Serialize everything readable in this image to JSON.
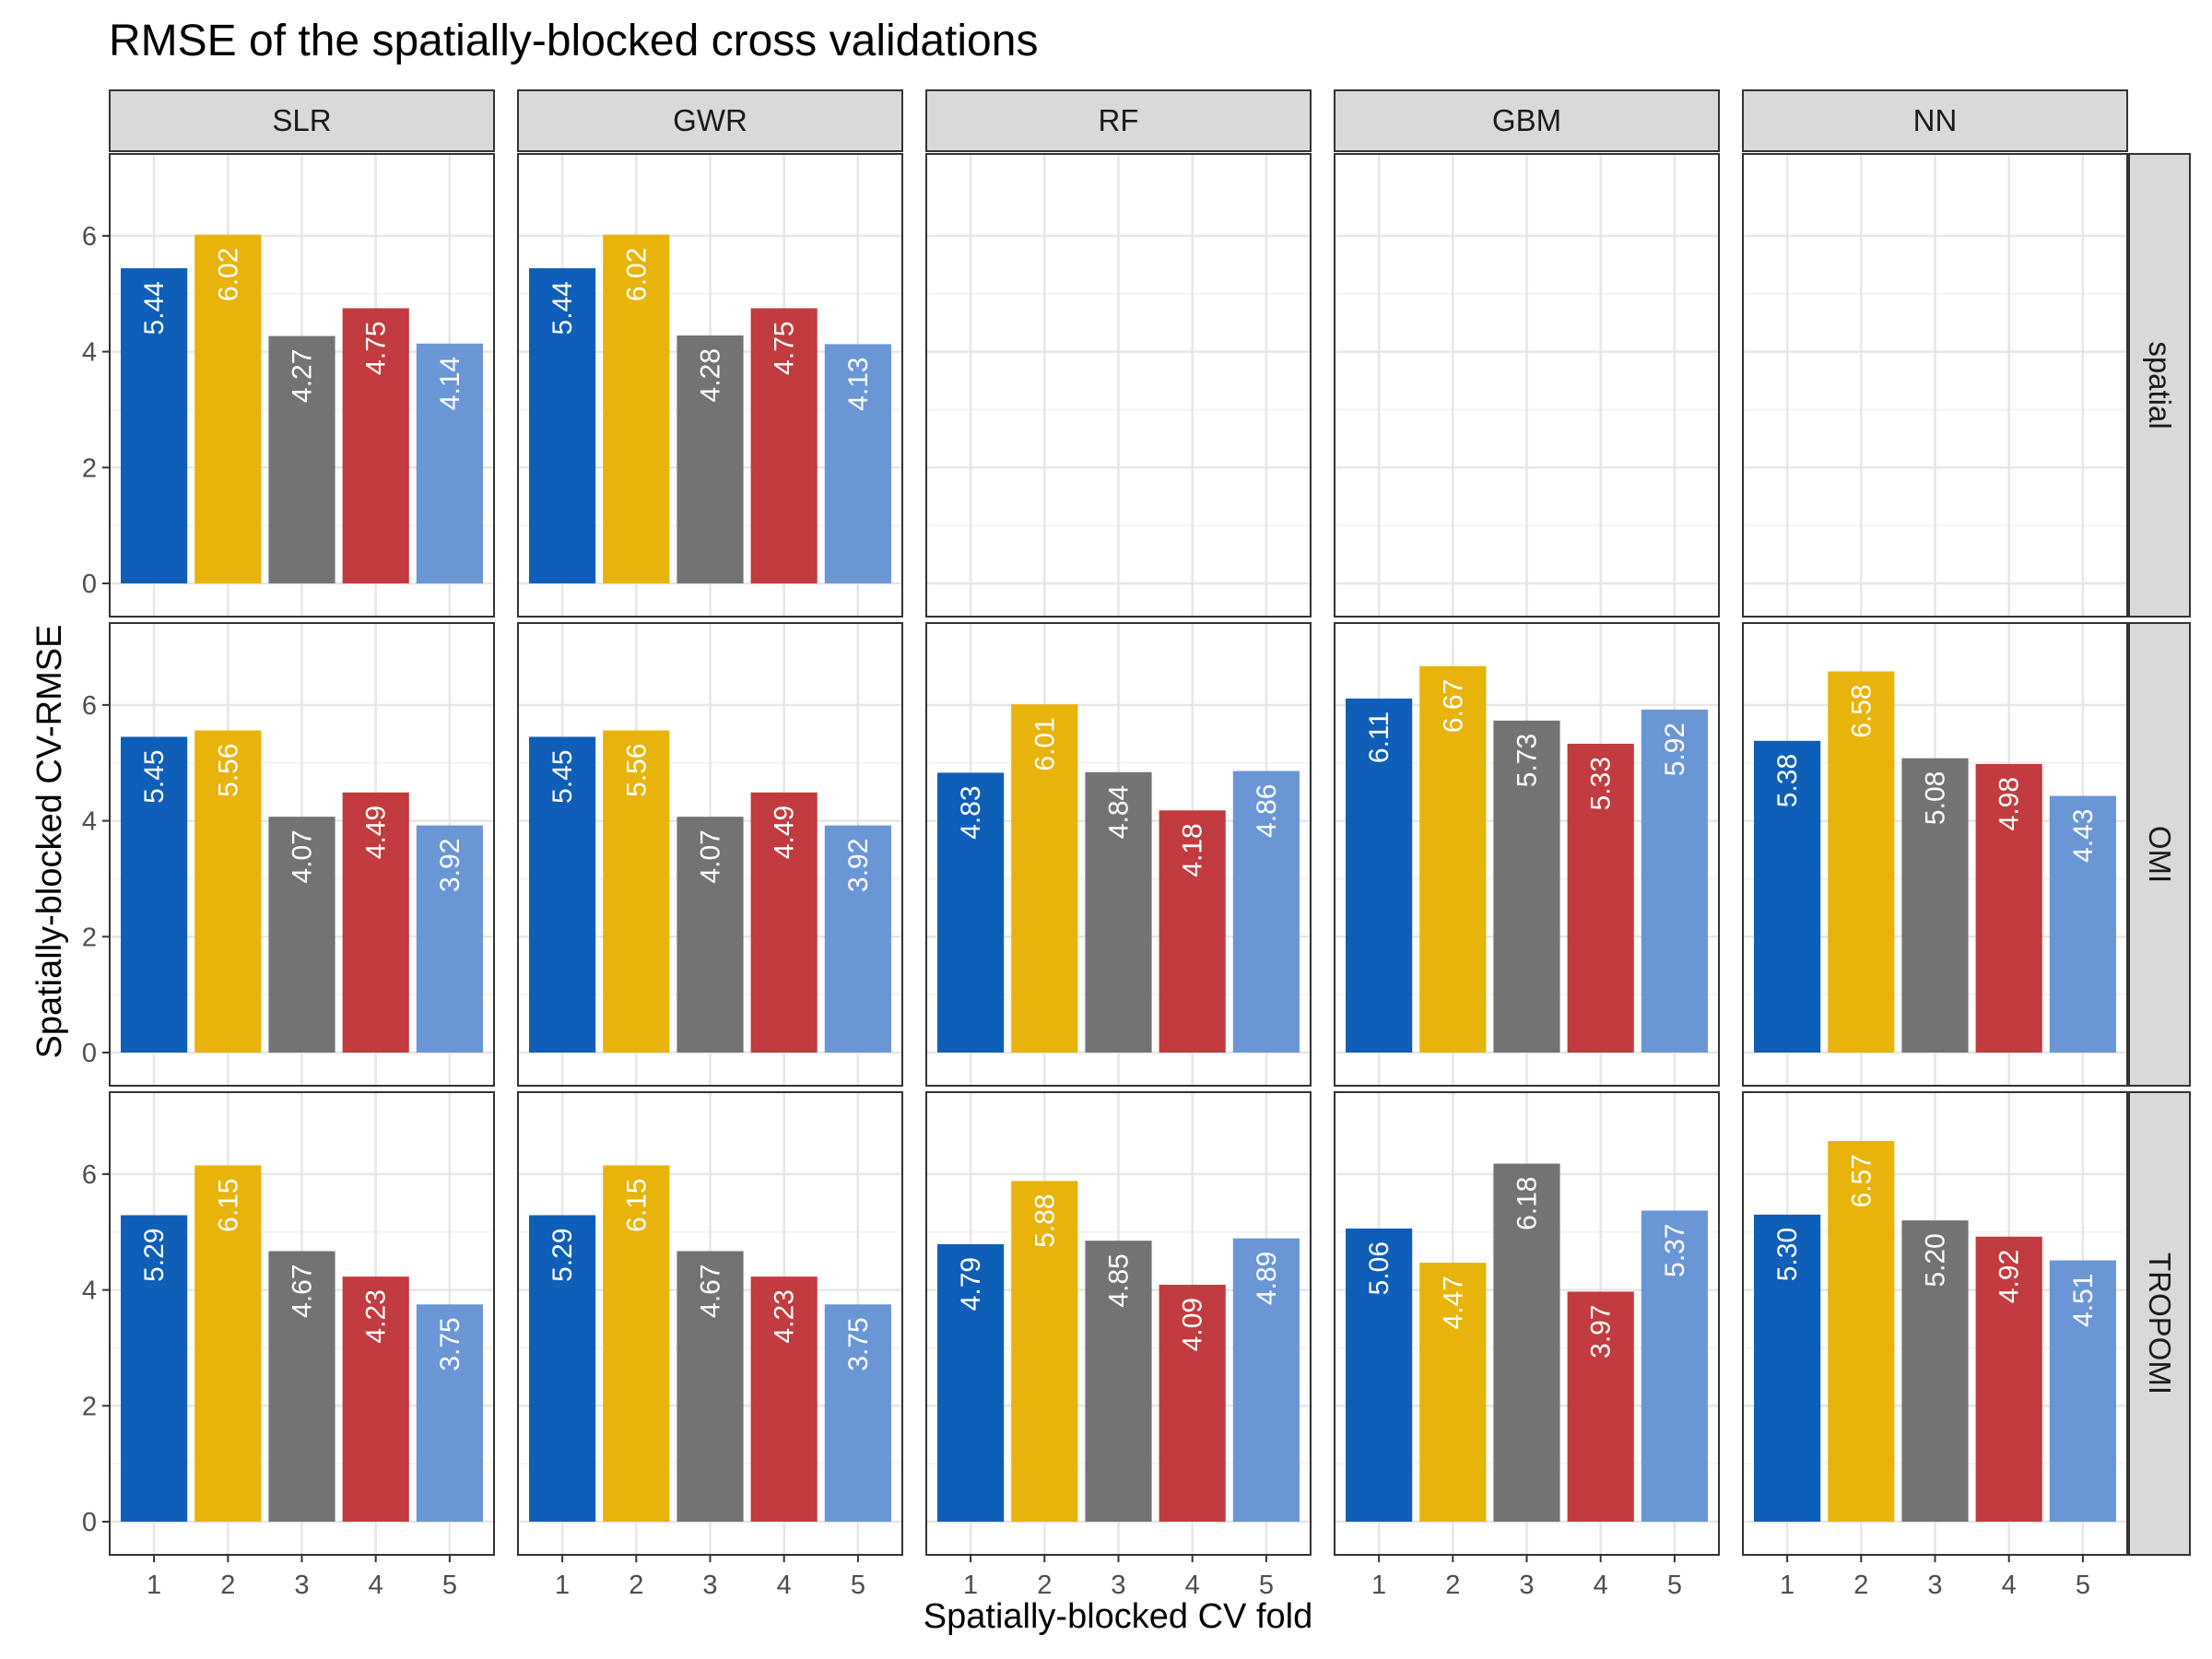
{
  "chart_data": {
    "type": "bar",
    "title": "RMSE of the spatially-blocked cross validations",
    "xlabel": "Spatially-blocked CV fold",
    "ylabel": "Spatially-blocked CV-RMSE",
    "ylim": [
      0,
      7
    ],
    "y_ticks": [
      0,
      2,
      4,
      6
    ],
    "categories": [
      "1",
      "2",
      "3",
      "4",
      "5"
    ],
    "bar_colors": [
      "#0f5eb8",
      "#e8b30a",
      "#737373",
      "#c23b3e",
      "#6a96d6"
    ],
    "facet_columns": [
      "SLR",
      "GWR",
      "RF",
      "GBM",
      "NN"
    ],
    "facet_rows": [
      "spatial",
      "OMI",
      "TROPOMI"
    ],
    "grid": true,
    "legend": "none",
    "values": {
      "spatial": {
        "SLR": [
          5.44,
          6.02,
          4.27,
          4.75,
          4.14
        ],
        "GWR": [
          5.44,
          6.02,
          4.28,
          4.75,
          4.13
        ],
        "RF": null,
        "GBM": null,
        "NN": null
      },
      "OMI": {
        "SLR": [
          5.45,
          5.56,
          4.07,
          4.49,
          3.92
        ],
        "GWR": [
          5.45,
          5.56,
          4.07,
          4.49,
          3.92
        ],
        "RF": [
          4.83,
          6.01,
          4.84,
          4.18,
          4.86
        ],
        "GBM": [
          6.11,
          6.67,
          5.73,
          5.33,
          5.92
        ],
        "NN": [
          5.38,
          6.58,
          5.08,
          4.98,
          4.43
        ]
      },
      "TROPOMI": {
        "SLR": [
          5.29,
          6.15,
          4.67,
          4.23,
          3.75
        ],
        "GWR": [
          5.29,
          6.15,
          4.67,
          4.23,
          3.75
        ],
        "RF": [
          4.79,
          5.88,
          4.85,
          4.09,
          4.89
        ],
        "GBM": [
          5.06,
          4.47,
          6.18,
          3.97,
          5.37
        ],
        "NN": [
          5.3,
          6.57,
          5.2,
          4.92,
          4.51
        ]
      }
    }
  }
}
